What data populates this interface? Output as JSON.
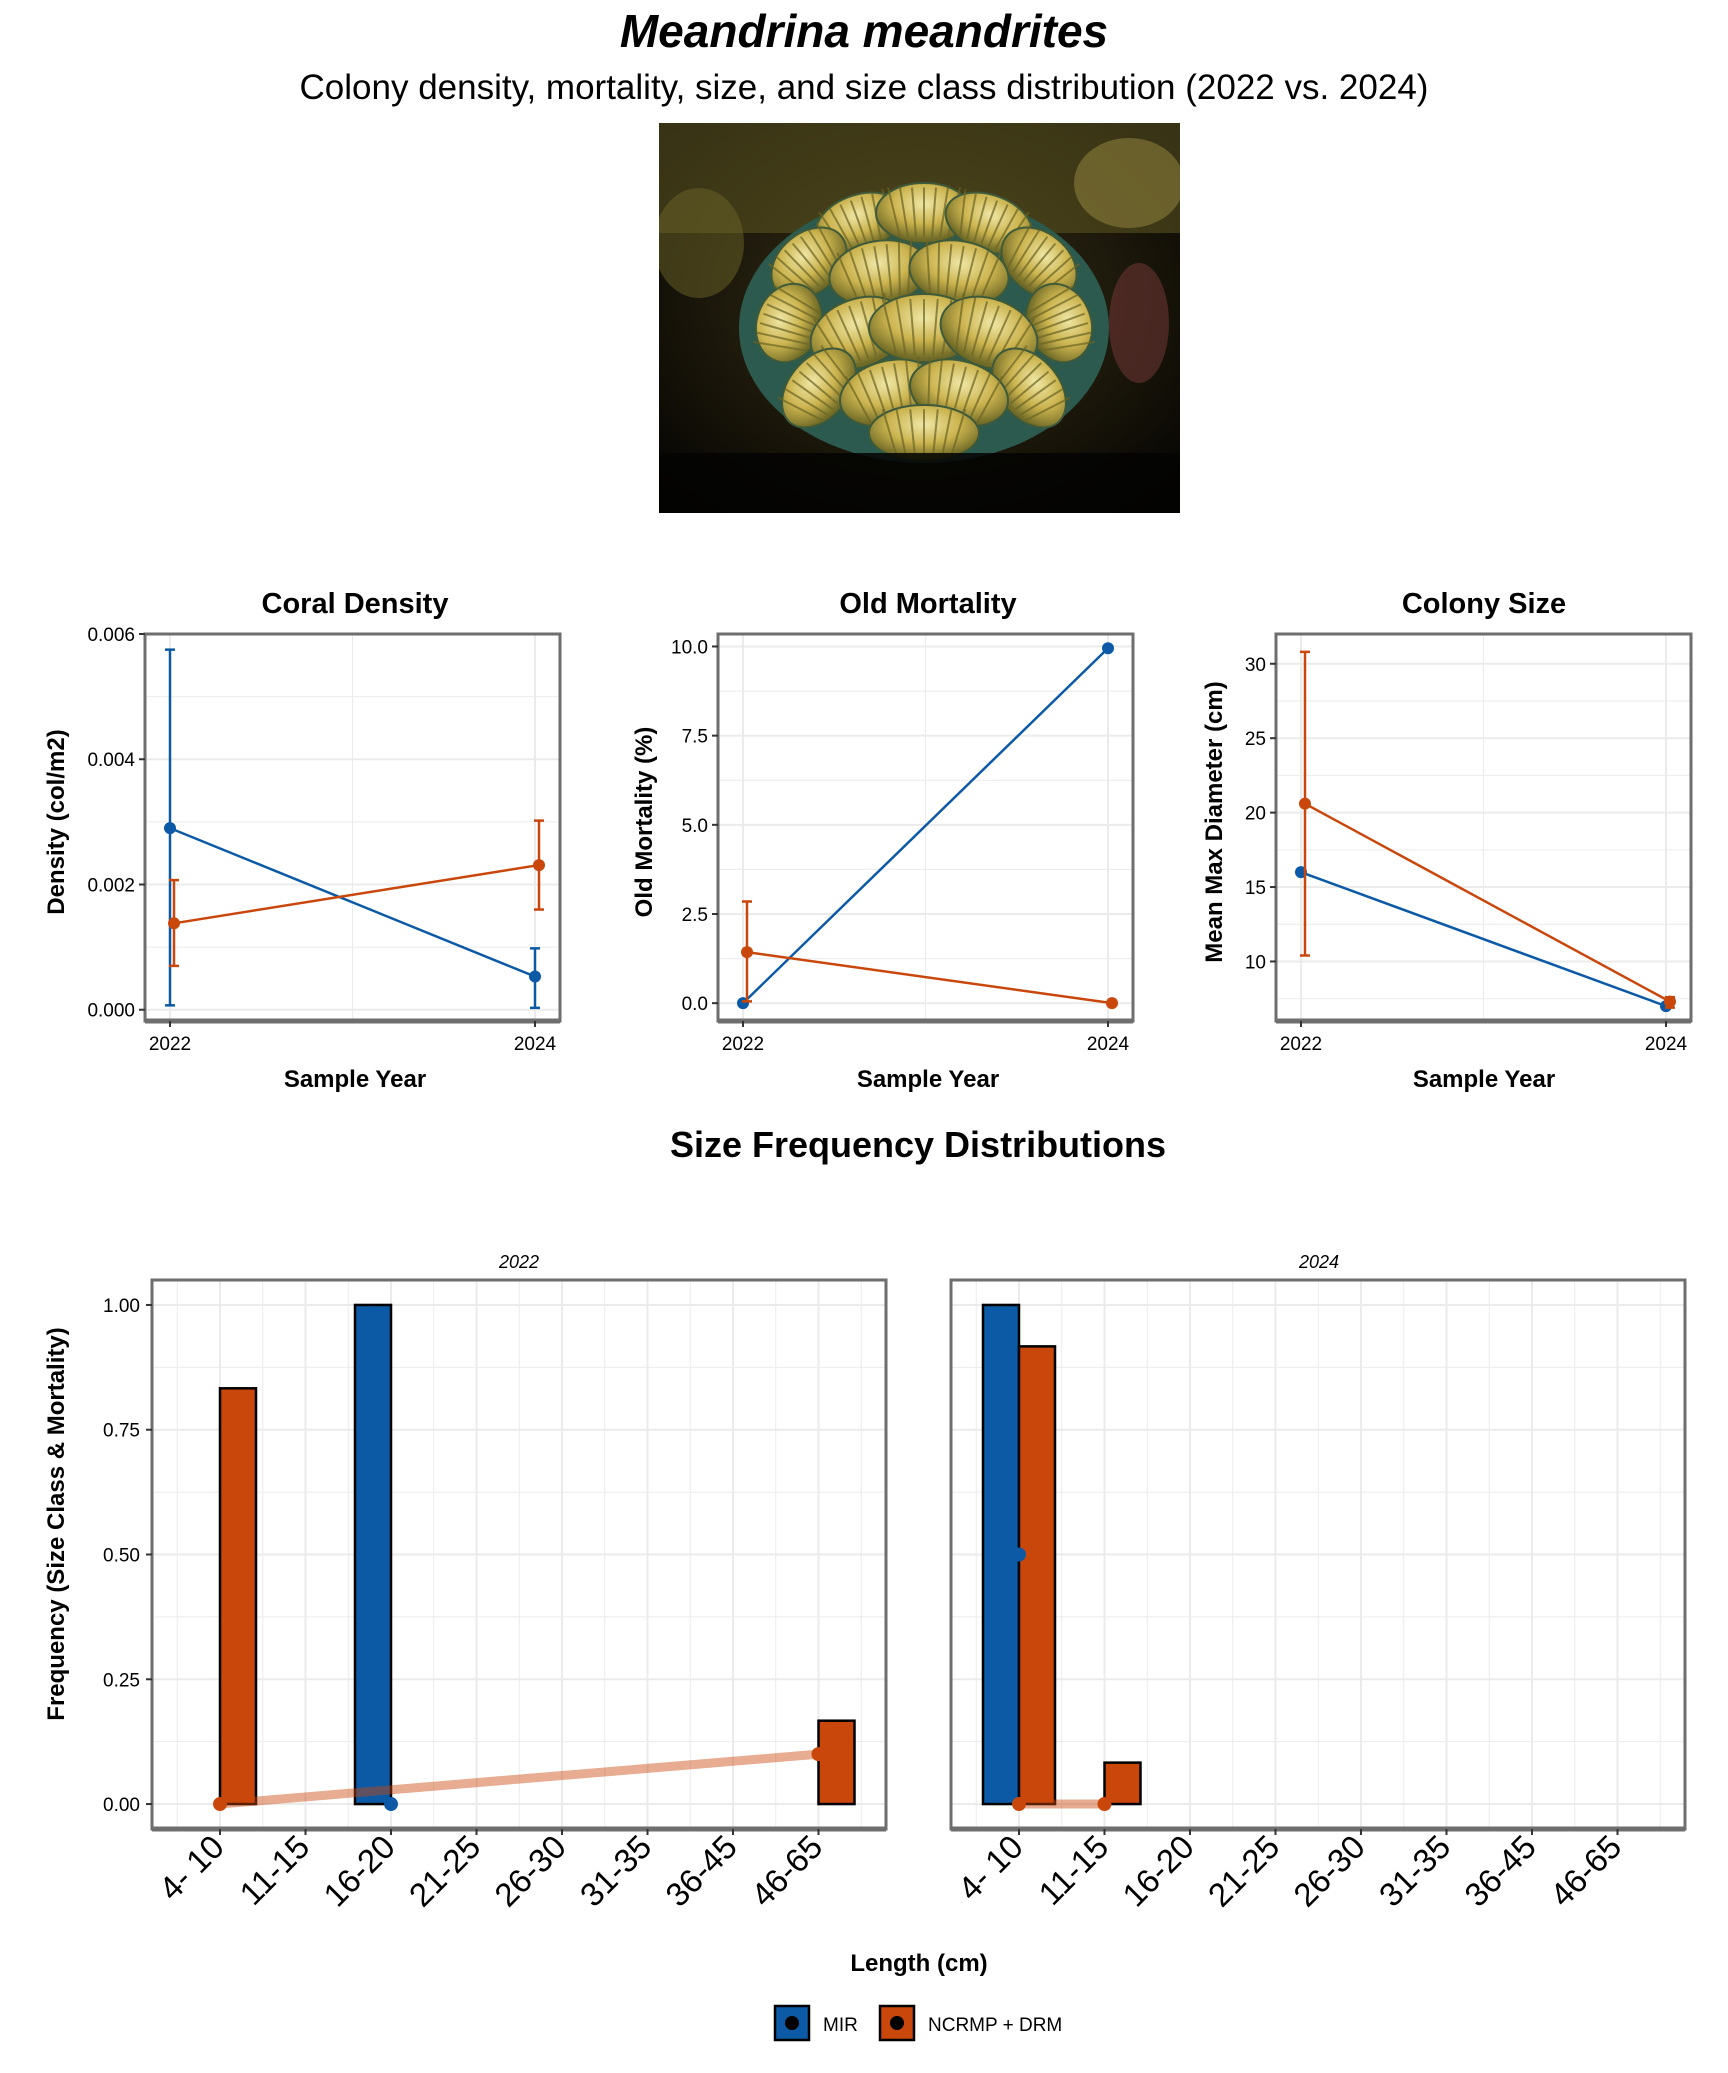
{
  "title": "Meandrina meandrites",
  "subtitle": "Colony density, mortality, size, and size class distribution (2022 vs. 2024)",
  "photo": {
    "icon": "meandrina-coral-photo"
  },
  "colors": {
    "MIR": "#0c5aa6",
    "NCRMP_DRM": "#c9470b",
    "grid": "#ebebeb",
    "border": "#6e6e6e"
  },
  "section_title": "Size Frequency Distributions",
  "chart_data": [
    {
      "type": "line",
      "title": "Coral Density",
      "xlabel": "Sample Year",
      "ylabel": "Density (col/m2)",
      "x": [
        2022,
        2024
      ],
      "x_ticks": [
        "2022",
        "2024"
      ],
      "y_ticks": [
        "0.000",
        "0.002",
        "0.004",
        "0.006"
      ],
      "ylim": [
        -0.00018,
        0.006
      ],
      "grid": true,
      "series": [
        {
          "name": "MIR",
          "values": [
            0.0029,
            0.00053
          ],
          "err_low": [
            7e-05,
            3e-05
          ],
          "err_high": [
            0.00575,
            0.00098
          ]
        },
        {
          "name": "NCRMP + DRM",
          "values": [
            0.00138,
            0.00231
          ],
          "err_low": [
            0.0007,
            0.0016
          ],
          "err_high": [
            0.00207,
            0.00302
          ]
        }
      ]
    },
    {
      "type": "line",
      "title": "Old Mortality",
      "xlabel": "Sample Year",
      "ylabel": "Old Mortality (%)",
      "x": [
        2022,
        2024
      ],
      "x_ticks": [
        "2022",
        "2024"
      ],
      "y_ticks": [
        "0.0",
        "2.5",
        "5.0",
        "7.5",
        "10.0"
      ],
      "ylim": [
        -0.5,
        10.35
      ],
      "grid": true,
      "series": [
        {
          "name": "MIR",
          "values": [
            0,
            9.95
          ]
        },
        {
          "name": "NCRMP + DRM",
          "values": [
            1.43,
            0
          ],
          "err_low": [
            0.05,
            null
          ],
          "err_high": [
            2.85,
            null
          ]
        }
      ]
    },
    {
      "type": "line",
      "title": "Colony Size",
      "xlabel": "Sample Year",
      "ylabel": "Mean Max Diameter (cm)",
      "x": [
        2022,
        2024
      ],
      "x_ticks": [
        "2022",
        "2024"
      ],
      "y_ticks": [
        "10",
        "15",
        "20",
        "25",
        "30"
      ],
      "ylim": [
        6,
        32
      ],
      "grid": true,
      "series": [
        {
          "name": "MIR",
          "values": [
            16.0,
            7.0
          ]
        },
        {
          "name": "NCRMP + DRM",
          "values": [
            20.6,
            7.3
          ],
          "err_low": [
            10.4,
            6.9
          ],
          "err_high": [
            30.8,
            7.6
          ]
        }
      ]
    },
    {
      "type": "bar",
      "facet": "2022",
      "ylabel": "Frequency (Size Class & Mortality)",
      "xlabel": "Length (cm)",
      "categories": [
        "4- 10",
        "11-15",
        "16-20",
        "21-25",
        "26-30",
        "31-35",
        "36-45",
        "46-65"
      ],
      "y_ticks": [
        "0.00",
        "0.25",
        "0.50",
        "0.75",
        "1.00"
      ],
      "ylim": [
        -0.05,
        1.05
      ],
      "grid": true,
      "series": [
        {
          "name": "MIR",
          "values": [
            0,
            0,
            1.0,
            null,
            null,
            null,
            null,
            0
          ],
          "mortality": [
            null,
            null,
            0,
            null,
            null,
            null,
            null,
            null
          ]
        },
        {
          "name": "NCRMP + DRM",
          "values": [
            0.833,
            0,
            0,
            null,
            null,
            null,
            null,
            0.167
          ],
          "mortality": [
            0,
            null,
            null,
            null,
            null,
            null,
            null,
            0.1
          ]
        }
      ]
    },
    {
      "type": "bar",
      "facet": "2024",
      "xlabel": "Length (cm)",
      "categories": [
        "4- 10",
        "11-15",
        "16-20",
        "21-25",
        "26-30",
        "31-35",
        "36-45",
        "46-65"
      ],
      "y_ticks": [
        "0.00",
        "0.25",
        "0.50",
        "0.75",
        "1.00"
      ],
      "ylim": [
        -0.05,
        1.05
      ],
      "grid": true,
      "series": [
        {
          "name": "MIR",
          "values": [
            1.0,
            null,
            0,
            null,
            null,
            null,
            null,
            0
          ],
          "mortality": [
            0.5,
            null,
            null,
            null,
            null,
            null,
            null,
            null
          ]
        },
        {
          "name": "NCRMP + DRM",
          "values": [
            0.917,
            0.083,
            0,
            null,
            null,
            null,
            null,
            0
          ],
          "mortality": [
            0,
            0,
            null,
            null,
            null,
            null,
            null,
            null
          ]
        }
      ]
    }
  ],
  "legend": {
    "placement": "bottom",
    "items": [
      {
        "key": "MIR",
        "label": "MIR"
      },
      {
        "key": "NCRMP_DRM",
        "label": "NCRMP + DRM"
      }
    ]
  }
}
